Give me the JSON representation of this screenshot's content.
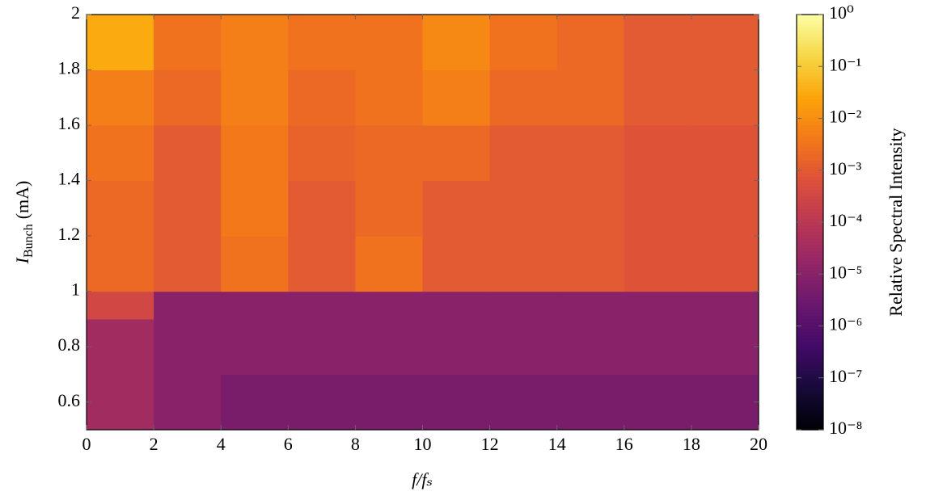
{
  "chart_data": {
    "type": "heatmap",
    "xlabel": "f/fₛ",
    "ylabel": [
      "I",
      "Bunch",
      "(mA)"
    ],
    "xlim": [
      0,
      20
    ],
    "xticks": [
      0,
      2,
      4,
      6,
      8,
      10,
      12,
      14,
      16,
      18,
      20
    ],
    "ylim": [
      0.5,
      2
    ],
    "yticks": [
      0.6,
      0.8,
      1,
      1.2,
      1.4,
      1.6,
      1.8,
      2
    ],
    "x_edges": [
      0,
      2,
      4,
      6,
      8,
      10,
      12,
      14,
      16,
      18,
      20
    ],
    "y_edges": [
      0.5,
      0.7,
      0.9,
      1.0,
      1.2,
      1.4,
      1.6,
      1.8,
      2.0
    ],
    "z": [
      [
        3e-05,
        1e-05,
        5e-06,
        5e-06,
        5e-06,
        5e-06,
        5e-06,
        5e-06,
        5e-06,
        5e-06
      ],
      [
        3e-05,
        1e-05,
        1e-05,
        1e-05,
        1e-05,
        1e-05,
        1e-05,
        1e-05,
        1e-05,
        1e-05
      ],
      [
        0.0003,
        1e-05,
        1e-05,
        1e-05,
        1e-05,
        1e-05,
        1e-05,
        1e-05,
        1e-05,
        1e-05
      ],
      [
        0.002,
        0.001,
        0.003,
        0.001,
        0.003,
        0.001,
        0.001,
        0.001,
        0.0007,
        0.0007
      ],
      [
        0.002,
        0.001,
        0.004,
        0.001,
        0.002,
        0.001,
        0.001,
        0.001,
        0.0007,
        0.0007
      ],
      [
        0.003,
        0.001,
        0.004,
        0.0015,
        0.002,
        0.002,
        0.001,
        0.001,
        0.0007,
        0.0007
      ],
      [
        0.005,
        0.002,
        0.005,
        0.002,
        0.003,
        0.005,
        0.002,
        0.002,
        0.001,
        0.001
      ],
      [
        0.03,
        0.003,
        0.005,
        0.003,
        0.003,
        0.008,
        0.003,
        0.002,
        0.001,
        0.001
      ]
    ],
    "colorbar": {
      "label": "Relative Spectral Intensity",
      "log": true,
      "colormap": "inferno",
      "lim": [
        1e-08,
        1
      ],
      "ticks": [
        {
          "value": 1e-08,
          "label": "10⁻⁸"
        },
        {
          "value": 1e-07,
          "label": "10⁻⁷"
        },
        {
          "value": 1e-06,
          "label": "10⁻⁶"
        },
        {
          "value": 1e-05,
          "label": "10⁻⁵"
        },
        {
          "value": 0.0001,
          "label": "10⁻⁴"
        },
        {
          "value": 0.001,
          "label": "10⁻³"
        },
        {
          "value": 0.01,
          "label": "10⁻²"
        },
        {
          "value": 0.1,
          "label": "10⁻¹"
        },
        {
          "value": 1,
          "label": "10⁰"
        }
      ]
    }
  }
}
